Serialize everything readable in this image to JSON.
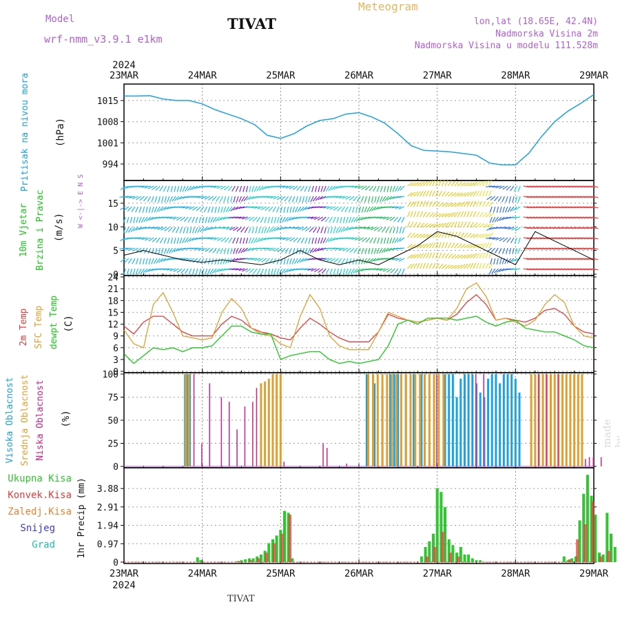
{
  "header": {
    "model_label": "Model",
    "model_name": "wrf-nmm_v3.9.1 e1km",
    "station": "TIVAT",
    "product": "Meteogram",
    "location": "lon,lat (18.65E, 42.4N)",
    "elevation": "Nadmorska Visina 2m",
    "model_elevation": "Nadmorska Visina u modelu 111.528m"
  },
  "footer": {
    "station": "TIVAT",
    "credit": "made by Angel"
  },
  "time_axis": {
    "year": "2024",
    "dates": [
      "23MAR",
      "24MAR",
      "25MAR",
      "26MAR",
      "27MAR",
      "28MAR",
      "29MAR"
    ]
  },
  "colors": {
    "pressure": "#1ca0e6",
    "wind_speed": "#000000",
    "temp_2m": "#e83a3a",
    "temp_sfc": "#e0a030",
    "dewpoint": "#18c818",
    "cloud_high": "#1ca0e6",
    "cloud_mid": "#e0a030",
    "cloud_low": "#d0208a",
    "precip_total": "#2ec82e",
    "precip_conv": "#e83a3a",
    "precip_frozen": "#f08030",
    "snow": "#3a3ae0",
    "hail": "#20c0b0"
  },
  "chart_data": [
    {
      "type": "line",
      "ylabel_left": "Pritisak na nivou mora",
      "ylabel_unit": "(hPa)",
      "yticks": [
        "1015",
        "1008",
        "1001",
        "994"
      ],
      "ylim": [
        989,
        1020
      ],
      "x_days": [
        0,
        0.17,
        0.33,
        0.5,
        0.67,
        0.83,
        1.0,
        1.17,
        1.33,
        1.5,
        1.67,
        1.83,
        2.0,
        2.17,
        2.33,
        2.5,
        2.67,
        2.83,
        3.0,
        3.17,
        3.33,
        3.5,
        3.67,
        3.83,
        4.0,
        4.17,
        4.33,
        4.5,
        4.67,
        4.83,
        5.0,
        5.17,
        5.33,
        5.5,
        5.67,
        5.83,
        6.0
      ],
      "values": [
        1016.5,
        1016.5,
        1016.6,
        1015.5,
        1015.0,
        1015.0,
        1013.9,
        1011.9,
        1010.5,
        1009.0,
        1007.0,
        1003.5,
        1002.5,
        1004.0,
        1006.5,
        1008.4,
        1009.0,
        1010.5,
        1011.0,
        1009.5,
        1007.5,
        1004.0,
        1000.0,
        998.5,
        998.3,
        998.0,
        997.5,
        996.9,
        994.3,
        993.7,
        993.7,
        997.6,
        1003.0,
        1008.0,
        1011.5,
        1014.0,
        1017.0
      ]
    },
    {
      "type": "line",
      "ylabel_left": "10m Vjetar",
      "ylabel_left2": "Brzina i Pravac",
      "ylabel_unit": "(m/s)",
      "compass": "W <-|-> E  N  S",
      "yticks": [
        "0",
        "5",
        "10",
        "15"
      ],
      "ylim": [
        0,
        19.5
      ],
      "x_days": [
        0,
        0.25,
        0.5,
        0.75,
        1.0,
        1.25,
        1.5,
        1.75,
        2.0,
        2.25,
        2.5,
        2.75,
        3.0,
        3.25,
        3.5,
        3.75,
        4.0,
        4.25,
        4.5,
        4.75,
        5.0,
        5.25,
        5.5,
        5.75,
        6.0
      ],
      "values": [
        4,
        5,
        4,
        3,
        2.5,
        3,
        2.5,
        2,
        3,
        5,
        3,
        2,
        3,
        2,
        4,
        6,
        9,
        8,
        6,
        4,
        2,
        9,
        7,
        5,
        3
      ]
    },
    {
      "type": "line",
      "ylabel_left": "2m Temp",
      "ylabel_left2": "SFC Temp",
      "ylabel_left3": "dewpt Temp",
      "ylabel_unit": "(C)",
      "yticks": [
        "0",
        "3",
        "6",
        "9",
        "12",
        "15",
        "18",
        "21",
        "24"
      ],
      "ylim": [
        0,
        24
      ],
      "x_days": [
        0,
        0.125,
        0.25,
        0.375,
        0.5,
        0.625,
        0.75,
        0.875,
        1.0,
        1.125,
        1.25,
        1.375,
        1.5,
        1.625,
        1.75,
        1.875,
        2.0,
        2.125,
        2.25,
        2.375,
        2.5,
        2.625,
        2.75,
        2.875,
        3.0,
        3.125,
        3.25,
        3.375,
        3.5,
        3.625,
        3.75,
        3.875,
        4.0,
        4.125,
        4.25,
        4.375,
        4.5,
        4.625,
        4.75,
        4.875,
        5.0,
        5.125,
        5.25,
        5.375,
        5.5,
        5.625,
        5.75,
        5.875,
        6.0
      ],
      "series": [
        {
          "name": "2m Temp",
          "values": [
            11.5,
            9.5,
            12.5,
            14.0,
            14.0,
            12.0,
            10.0,
            9.0,
            9.0,
            9.0,
            12.0,
            14.0,
            13.0,
            11.0,
            10.0,
            9.5,
            8.5,
            8.0,
            11.0,
            13.5,
            12.0,
            10.0,
            8.5,
            7.5,
            7.5,
            7.5,
            10.0,
            14.5,
            13.5,
            13.0,
            12.5,
            13.0,
            13.5,
            13.0,
            14.5,
            17.5,
            19.5,
            17.0,
            13.0,
            13.5,
            13.0,
            12.5,
            13.5,
            15.5,
            16.0,
            14.5,
            11.5,
            10.0,
            9.5
          ]
        },
        {
          "name": "SFC Temp",
          "values": [
            10.5,
            7.0,
            6.0,
            17.0,
            20.0,
            15.0,
            9.0,
            8.5,
            8.0,
            8.5,
            15.0,
            18.5,
            16.0,
            11.0,
            9.5,
            9.0,
            7.0,
            6.0,
            14.0,
            19.5,
            16.0,
            9.0,
            6.5,
            5.5,
            5.5,
            5.5,
            10.0,
            15.0,
            14.0,
            13.0,
            12.5,
            13.0,
            13.5,
            13.0,
            16.0,
            21.0,
            22.5,
            19.0,
            13.0,
            13.5,
            12.5,
            11.5,
            13.0,
            17.0,
            19.5,
            17.5,
            11.5,
            9.0,
            8.5
          ]
        },
        {
          "name": "dewpt Temp",
          "values": [
            4.5,
            2.0,
            4.0,
            6.0,
            5.5,
            6.0,
            5.0,
            6.0,
            6.0,
            6.5,
            9.0,
            11.5,
            11.5,
            10.0,
            9.5,
            9.5,
            3.0,
            4.0,
            4.5,
            5.0,
            5.0,
            3.0,
            2.0,
            2.5,
            2.0,
            2.5,
            3.0,
            6.5,
            12.0,
            13.0,
            12.0,
            13.5,
            13.5,
            13.5,
            13.0,
            13.5,
            14.0,
            12.5,
            11.5,
            12.5,
            13.0,
            11.0,
            10.5,
            10.0,
            10.0,
            9.0,
            8.0,
            6.5,
            6.0
          ]
        }
      ]
    },
    {
      "type": "bar",
      "ylabel_left": "Visoka Oblacnost",
      "ylabel_left2": "Srednja Oblacnost",
      "ylabel_left3": "Niska Oblacnost",
      "ylabel_unit": "(%)",
      "yticks": [
        "0",
        "25",
        "50",
        "75",
        "100"
      ],
      "ylim": [
        0,
        100
      ],
      "series": [
        {
          "name": "Visoka Oblacnost",
          "x_days": [
            0.78,
            0.81,
            0.84,
            3.1,
            3.2,
            3.3,
            3.4,
            3.45,
            3.5,
            3.6,
            3.7,
            3.8,
            4.1,
            4.15,
            4.2,
            4.25,
            4.3,
            4.35,
            4.4,
            4.45,
            4.5,
            4.55,
            4.6,
            4.65,
            4.7,
            4.75,
            4.8,
            4.85,
            4.9,
            4.95,
            5.0,
            5.05
          ],
          "values": [
            100,
            100,
            100,
            100,
            90,
            85,
            100,
            100,
            100,
            100,
            100,
            100,
            100,
            100,
            100,
            75,
            95,
            100,
            100,
            100,
            90,
            80,
            75,
            95,
            100,
            100,
            90,
            100,
            100,
            100,
            95,
            80
          ]
        },
        {
          "name": "Srednja Oblacnost",
          "x_days": [
            0.79,
            0.83,
            1.75,
            1.8,
            1.85,
            1.9,
            1.95,
            2.0,
            3.12,
            3.18,
            3.24,
            3.3,
            3.36,
            3.42,
            3.48,
            3.54,
            3.6,
            3.66,
            3.72,
            3.78,
            3.84,
            3.9,
            3.96,
            4.02,
            4.08,
            5.2,
            5.25,
            5.3,
            5.35,
            5.4,
            5.45,
            5.5,
            5.55,
            5.6,
            5.65,
            5.7,
            5.75,
            5.8,
            5.85
          ],
          "values": [
            100,
            100,
            90,
            92,
            95,
            100,
            100,
            100,
            100,
            100,
            100,
            100,
            100,
            100,
            100,
            100,
            100,
            100,
            100,
            100,
            100,
            100,
            100,
            100,
            100,
            100,
            100,
            100,
            100,
            100,
            100,
            100,
            100,
            100,
            100,
            100,
            100,
            100,
            100
          ]
        },
        {
          "name": "Niska Oblacnost",
          "x_days": [
            0.9,
            1.0,
            1.1,
            1.25,
            1.35,
            1.45,
            1.55,
            1.65,
            1.7,
            2.05,
            2.55,
            2.6,
            2.85,
            4.0,
            4.5,
            4.6,
            5.3,
            5.4,
            5.55,
            5.9,
            5.95,
            6.0,
            6.1
          ],
          "values": [
            100,
            25,
            90,
            75,
            70,
            40,
            65,
            70,
            85,
            5,
            25,
            20,
            3,
            100,
            100,
            100,
            100,
            100,
            100,
            8,
            10,
            10,
            10
          ]
        }
      ]
    },
    {
      "type": "bar",
      "ylabel_left": "1hr Precip (mm)",
      "legend": [
        "Ukupna Kisa",
        "Konvek.Kisa",
        "Zaledj.Kisa",
        "Snijeg",
        "Grad"
      ],
      "yticks": [
        "0",
        "0.97",
        "1.94",
        "2.91",
        "3.88"
      ],
      "ylim": [
        0,
        4.9
      ],
      "series": [
        {
          "name": "Ukupna Kisa",
          "x_days": [
            0.94,
            0.98,
            1.45,
            1.5,
            1.55,
            1.6,
            1.65,
            1.7,
            1.75,
            1.8,
            1.85,
            1.9,
            1.95,
            2.0,
            2.05,
            2.1,
            2.15,
            3.8,
            3.85,
            3.9,
            3.95,
            4.0,
            4.05,
            4.1,
            4.15,
            4.2,
            4.25,
            4.3,
            4.35,
            4.4,
            4.45,
            4.5,
            4.55,
            5.62,
            5.67,
            5.72,
            5.77,
            5.82,
            5.87,
            5.92,
            5.97,
            6.02,
            6.07,
            6.12,
            6.17,
            6.22,
            6.27
          ],
          "values": [
            0.25,
            0.1,
            0.05,
            0.1,
            0.15,
            0.2,
            0.2,
            0.3,
            0.4,
            0.6,
            1.0,
            1.2,
            1.4,
            1.7,
            2.7,
            2.6,
            0.2,
            0.3,
            0.8,
            1.1,
            1.5,
            3.9,
            3.7,
            2.9,
            1.2,
            0.9,
            0.5,
            0.8,
            0.4,
            0.4,
            0.2,
            0.1,
            0.1,
            0.3,
            0.1,
            0.2,
            0.3,
            2.2,
            3.6,
            4.6,
            3.5,
            2.5,
            0.5,
            0.4,
            2.6,
            1.5,
            0.8
          ]
        },
        {
          "name": "Konvek.Kisa",
          "x_days": [
            1.47,
            1.62,
            1.72,
            1.82,
            1.92,
            2.02,
            2.12,
            3.87,
            3.97,
            4.07,
            4.17,
            4.27,
            5.69,
            5.79,
            5.89,
            5.99,
            6.09,
            6.19
          ],
          "values": [
            0.05,
            0.1,
            0.2,
            0.5,
            1.0,
            1.5,
            2.5,
            0.3,
            0.8,
            1.6,
            0.5,
            0.3,
            0.15,
            1.2,
            2.0,
            3.2,
            0.3,
            0.6
          ]
        }
      ]
    }
  ]
}
